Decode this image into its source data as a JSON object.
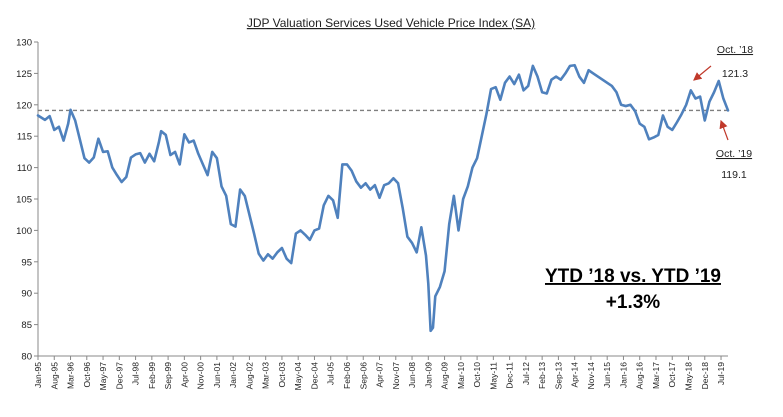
{
  "chart_data": {
    "type": "line",
    "title": "JDP Valuation Services Used Vehicle Price Index (SA)",
    "xlabel": "",
    "ylabel": "",
    "ylim": [
      80,
      130
    ],
    "yticks": [
      80,
      85,
      90,
      95,
      100,
      105,
      110,
      115,
      120,
      125,
      130
    ],
    "xticks": [
      "Jan-95",
      "Aug-95",
      "Mar-96",
      "Oct-96",
      "May-97",
      "Dec-97",
      "Jul-98",
      "Feb-99",
      "Sep-99",
      "Apr-00",
      "Nov-00",
      "Jun-01",
      "Jan-02",
      "Aug-02",
      "Mar-03",
      "Oct-03",
      "May-04",
      "Dec-04",
      "Jul-05",
      "Feb-06",
      "Sep-06",
      "Apr-07",
      "Nov-07",
      "Jun-08",
      "Jan-09",
      "Aug-09",
      "Mar-10",
      "Oct-10",
      "May-11",
      "Dec-11",
      "Jul-12",
      "Feb-13",
      "Sep-13",
      "Apr-14",
      "Nov-14",
      "Jun-15",
      "Jan-16",
      "Aug-16",
      "Mar-17",
      "Oct-17",
      "May-18",
      "Dec-18",
      "Jul-19"
    ],
    "grid": false,
    "legend": "none",
    "colors": {
      "line": "#4f81bd",
      "reference": "#7f7f7f",
      "arrow": "#c0392b"
    },
    "reference_line": {
      "y": 119.1,
      "style": "dashed"
    },
    "series": [
      {
        "points": [
          [
            "1995-01",
            118.3
          ],
          [
            "1995-04",
            117.6
          ],
          [
            "1995-06",
            118.2
          ],
          [
            "1995-08",
            116.0
          ],
          [
            "1995-10",
            116.5
          ],
          [
            "1995-12",
            114.3
          ],
          [
            "1996-02",
            117.0
          ],
          [
            "1996-03",
            119.2
          ],
          [
            "1996-05",
            117.5
          ],
          [
            "1996-07",
            114.5
          ],
          [
            "1996-09",
            111.5
          ],
          [
            "1996-11",
            110.8
          ],
          [
            "1997-01",
            111.6
          ],
          [
            "1997-03",
            114.6
          ],
          [
            "1997-05",
            112.5
          ],
          [
            "1997-07",
            112.6
          ],
          [
            "1997-09",
            110.0
          ],
          [
            "1997-11",
            108.8
          ],
          [
            "1998-01",
            107.7
          ],
          [
            "1998-03",
            108.5
          ],
          [
            "1998-05",
            111.6
          ],
          [
            "1998-07",
            112.1
          ],
          [
            "1998-09",
            112.3
          ],
          [
            "1998-11",
            110.8
          ],
          [
            "1999-01",
            112.2
          ],
          [
            "1999-03",
            111.0
          ],
          [
            "1999-05",
            114.0
          ],
          [
            "1999-06",
            115.8
          ],
          [
            "1999-08",
            115.2
          ],
          [
            "1999-10",
            112.0
          ],
          [
            "1999-12",
            112.5
          ],
          [
            "2000-02",
            110.5
          ],
          [
            "2000-04",
            115.3
          ],
          [
            "2000-06",
            114.0
          ],
          [
            "2000-08",
            114.3
          ],
          [
            "2000-10",
            112.2
          ],
          [
            "2000-12",
            110.5
          ],
          [
            "2001-02",
            108.8
          ],
          [
            "2001-04",
            112.5
          ],
          [
            "2001-06",
            111.5
          ],
          [
            "2001-08",
            107.0
          ],
          [
            "2001-10",
            105.5
          ],
          [
            "2001-12",
            101.0
          ],
          [
            "2002-02",
            100.6
          ],
          [
            "2002-04",
            106.5
          ],
          [
            "2002-06",
            105.5
          ],
          [
            "2002-08",
            102.5
          ],
          [
            "2002-10",
            99.5
          ],
          [
            "2002-12",
            96.3
          ],
          [
            "2003-02",
            95.2
          ],
          [
            "2003-04",
            96.2
          ],
          [
            "2003-06",
            95.5
          ],
          [
            "2003-08",
            96.5
          ],
          [
            "2003-10",
            97.2
          ],
          [
            "2003-12",
            95.5
          ],
          [
            "2004-02",
            94.8
          ],
          [
            "2004-04",
            99.5
          ],
          [
            "2004-06",
            100.0
          ],
          [
            "2004-08",
            99.3
          ],
          [
            "2004-10",
            98.5
          ],
          [
            "2004-12",
            100.0
          ],
          [
            "2005-02",
            100.3
          ],
          [
            "2005-04",
            104.0
          ],
          [
            "2005-06",
            105.5
          ],
          [
            "2005-08",
            104.8
          ],
          [
            "2005-10",
            102.0
          ],
          [
            "2005-12",
            110.5
          ],
          [
            "2006-02",
            110.5
          ],
          [
            "2006-04",
            109.5
          ],
          [
            "2006-06",
            107.8
          ],
          [
            "2006-08",
            106.8
          ],
          [
            "2006-10",
            107.5
          ],
          [
            "2006-12",
            106.5
          ],
          [
            "2007-02",
            107.2
          ],
          [
            "2007-04",
            105.2
          ],
          [
            "2007-06",
            107.2
          ],
          [
            "2007-08",
            107.5
          ],
          [
            "2007-10",
            108.3
          ],
          [
            "2007-12",
            107.5
          ],
          [
            "2008-02",
            103.5
          ],
          [
            "2008-04",
            99.0
          ],
          [
            "2008-06",
            98.0
          ],
          [
            "2008-08",
            96.5
          ],
          [
            "2008-10",
            100.5
          ],
          [
            "2008-12",
            96.0
          ],
          [
            "2009-01",
            91.5
          ],
          [
            "2009-02",
            84.0
          ],
          [
            "2009-03",
            84.5
          ],
          [
            "2009-04",
            89.5
          ],
          [
            "2009-06",
            91.0
          ],
          [
            "2009-08",
            93.5
          ],
          [
            "2009-10",
            101.0
          ],
          [
            "2009-12",
            105.5
          ],
          [
            "2010-02",
            100.0
          ],
          [
            "2010-04",
            105.0
          ],
          [
            "2010-06",
            107.0
          ],
          [
            "2010-08",
            110.0
          ],
          [
            "2010-10",
            111.5
          ],
          [
            "2010-12",
            115.0
          ],
          [
            "2011-02",
            118.5
          ],
          [
            "2011-04",
            122.5
          ],
          [
            "2011-06",
            122.8
          ],
          [
            "2011-08",
            120.8
          ],
          [
            "2011-10",
            123.5
          ],
          [
            "2011-12",
            124.5
          ],
          [
            "2012-02",
            123.3
          ],
          [
            "2012-04",
            124.8
          ],
          [
            "2012-06",
            122.3
          ],
          [
            "2012-08",
            123.0
          ],
          [
            "2012-10",
            126.2
          ],
          [
            "2012-12",
            124.5
          ],
          [
            "2013-02",
            122.0
          ],
          [
            "2013-04",
            121.8
          ],
          [
            "2013-06",
            124.0
          ],
          [
            "2013-08",
            124.5
          ],
          [
            "2013-10",
            124.0
          ],
          [
            "2013-12",
            125.0
          ],
          [
            "2014-02",
            126.2
          ],
          [
            "2014-04",
            126.3
          ],
          [
            "2014-06",
            124.5
          ],
          [
            "2014-08",
            123.5
          ],
          [
            "2014-10",
            125.5
          ],
          [
            "2014-12",
            125.0
          ],
          [
            "2015-02",
            124.5
          ],
          [
            "2015-04",
            124.0
          ],
          [
            "2015-06",
            123.5
          ],
          [
            "2015-08",
            123.0
          ],
          [
            "2015-10",
            122.0
          ],
          [
            "2015-12",
            120.0
          ],
          [
            "2016-02",
            119.8
          ],
          [
            "2016-04",
            120.0
          ],
          [
            "2016-06",
            119.0
          ],
          [
            "2016-08",
            117.0
          ],
          [
            "2016-10",
            116.5
          ],
          [
            "2016-12",
            114.5
          ],
          [
            "2017-02",
            114.8
          ],
          [
            "2017-04",
            115.2
          ],
          [
            "2017-06",
            118.3
          ],
          [
            "2017-08",
            116.5
          ],
          [
            "2017-10",
            116.0
          ],
          [
            "2017-12",
            117.2
          ],
          [
            "2018-02",
            118.5
          ],
          [
            "2018-04",
            120.0
          ],
          [
            "2018-06",
            122.3
          ],
          [
            "2018-08",
            121.0
          ],
          [
            "2018-10",
            121.3
          ],
          [
            "2018-12",
            117.5
          ],
          [
            "2019-02",
            120.5
          ],
          [
            "2019-04",
            122.0
          ],
          [
            "2019-06",
            123.8
          ],
          [
            "2019-08",
            121.0
          ],
          [
            "2019-10",
            119.1
          ]
        ]
      }
    ]
  },
  "annotations": {
    "oct18": {
      "label": "Oct. ’18",
      "value": "121.3"
    },
    "oct19": {
      "label": "Oct. ’19",
      "value": "119.1"
    }
  },
  "callout": {
    "title": "YTD ’18 vs. YTD ’19",
    "value": "+1.3%"
  }
}
